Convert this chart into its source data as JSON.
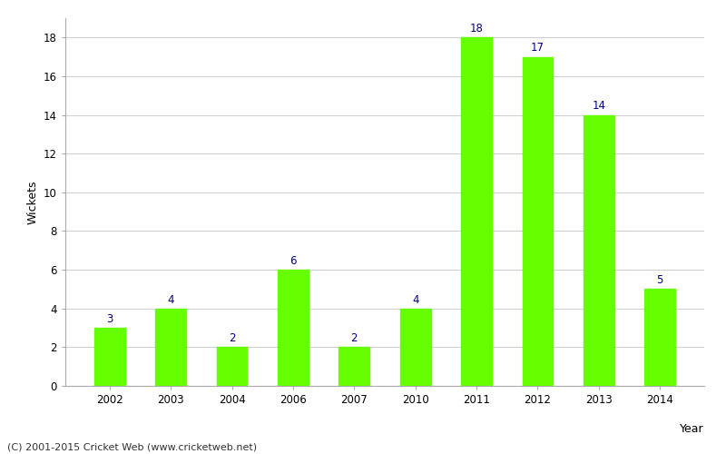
{
  "categories": [
    "2002",
    "2003",
    "2004",
    "2006",
    "2007",
    "2010",
    "2011",
    "2012",
    "2013",
    "2014"
  ],
  "values": [
    3,
    4,
    2,
    6,
    2,
    4,
    18,
    17,
    14,
    5
  ],
  "bar_color": "#66ff00",
  "bar_edge_color": "#66ff00",
  "title": "",
  "xlabel": "Year",
  "ylabel": "Wickets",
  "ylim": [
    0,
    19
  ],
  "yticks": [
    0,
    2,
    4,
    6,
    8,
    10,
    12,
    14,
    16,
    18
  ],
  "label_color": "#000080",
  "label_fontsize": 8.5,
  "axis_label_fontsize": 9,
  "tick_fontsize": 8.5,
  "background_color": "#ffffff",
  "grid_color": "#d0d0d0",
  "spine_color": "#aaaaaa",
  "footnote": "(C) 2001-2015 Cricket Web (www.cricketweb.net)",
  "footnote_fontsize": 8,
  "bar_width": 0.5
}
